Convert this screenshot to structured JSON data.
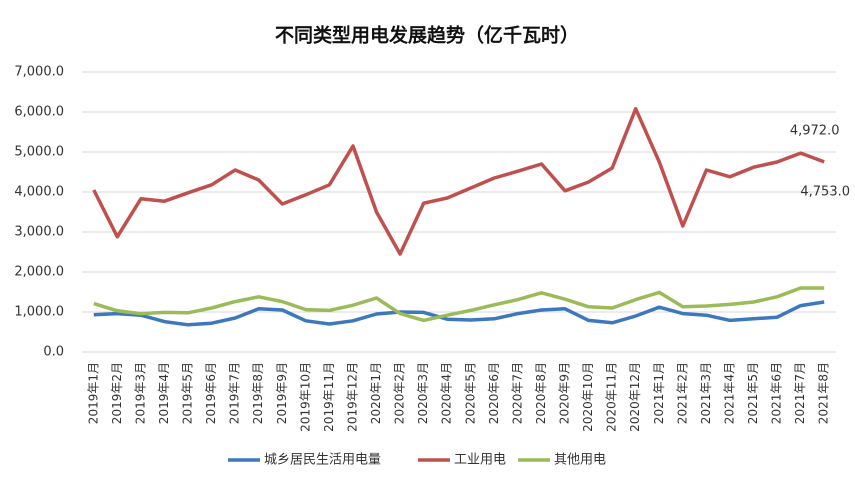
{
  "chart_data": {
    "type": "line",
    "title": "不同类型用电发展趋势（亿千瓦时）",
    "categories": [
      "2019年1月",
      "2019年2月",
      "2019年3月",
      "2019年4月",
      "2019年5月",
      "2019年6月",
      "2019年7月",
      "2019年8月",
      "2019年9月",
      "2019年10月",
      "2019年11月",
      "2019年12月",
      "2020年1月",
      "2020年2月",
      "2020年3月",
      "2020年4月",
      "2020年5月",
      "2020年6月",
      "2020年7月",
      "2020年8月",
      "2020年9月",
      "2020年10月",
      "2020年11月",
      "2020年12月",
      "2021年1月",
      "2021年2月",
      "2021年3月",
      "2021年4月",
      "2021年5月",
      "2021年6月",
      "2021年7月",
      "2021年8月"
    ],
    "series": [
      {
        "name": "城乡居民生活用电量",
        "color": "#3d78bf",
        "values": [
          930,
          960,
          920,
          760,
          680,
          720,
          850,
          1080,
          1050,
          780,
          700,
          780,
          950,
          1000,
          990,
          820,
          800,
          830,
          960,
          1050,
          1080,
          790,
          730,
          900,
          1120,
          960,
          920,
          790,
          830,
          870,
          1160,
          1250
        ]
      },
      {
        "name": "工业用电",
        "color": "#c0504d",
        "values": [
          4050,
          2880,
          3830,
          3770,
          3980,
          4180,
          4550,
          4300,
          3700,
          3930,
          4180,
          5150,
          3500,
          2450,
          3720,
          3850,
          4100,
          4350,
          4520,
          4700,
          4030,
          4250,
          4600,
          6080,
          4750,
          3150,
          4550,
          4380,
          4620,
          4750,
          4972,
          4753
        ],
        "value_labels": [
          null,
          null,
          null,
          null,
          null,
          null,
          null,
          null,
          null,
          null,
          null,
          null,
          null,
          null,
          null,
          null,
          null,
          null,
          null,
          null,
          null,
          null,
          null,
          null,
          null,
          null,
          null,
          null,
          null,
          null,
          "4,972.0",
          "4,753.0"
        ]
      },
      {
        "name": "其他用电",
        "color": "#9bbb59",
        "values": [
          1210,
          1030,
          960,
          990,
          980,
          1100,
          1260,
          1380,
          1260,
          1060,
          1040,
          1170,
          1350,
          960,
          790,
          920,
          1040,
          1180,
          1310,
          1480,
          1320,
          1130,
          1100,
          1310,
          1490,
          1130,
          1150,
          1190,
          1250,
          1380,
          1600,
          1600
        ]
      }
    ],
    "ylim": [
      0,
      7000
    ],
    "yticks": [
      {
        "value": 0,
        "label": "0.0"
      },
      {
        "value": 1000,
        "label": "1,000.0"
      },
      {
        "value": 2000,
        "label": "2,000.0"
      },
      {
        "value": 3000,
        "label": "3,000.0"
      },
      {
        "value": 4000,
        "label": "4,000.0"
      },
      {
        "value": 5000,
        "label": "5,000.0"
      },
      {
        "value": 6000,
        "label": "6,000.0"
      },
      {
        "value": 7000,
        "label": "7,000.0"
      }
    ],
    "grid": true,
    "legend": "bottom"
  }
}
